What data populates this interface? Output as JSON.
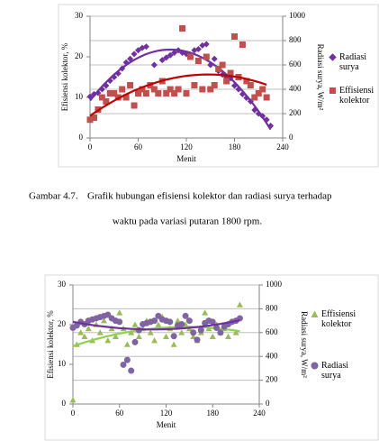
{
  "chart_data": [
    {
      "type": "scatter",
      "xlabel": "Menit",
      "ylabel": "Efisiensi kolektor, %",
      "y2label": "Radiasi surya, W/m²",
      "xlim": [
        0,
        240
      ],
      "xticks": [
        0,
        60,
        120,
        180,
        240
      ],
      "ylim": [
        0,
        30
      ],
      "yticks": [
        0,
        10,
        20,
        30
      ],
      "y2lim": [
        0,
        1000
      ],
      "y2ticks": [
        0,
        200,
        400,
        600,
        800,
        1000
      ],
      "grid": "y2",
      "trendline": "polynomial",
      "series": [
        {
          "name": "Radiasi surya",
          "color": "#7030a0",
          "marker": "diamond",
          "axis": "y2",
          "x": [
            0,
            5,
            10,
            15,
            20,
            25,
            30,
            35,
            40,
            45,
            50,
            55,
            60,
            65,
            70,
            80,
            90,
            95,
            100,
            105,
            110,
            115,
            120,
            125,
            130,
            135,
            140,
            145,
            150,
            155,
            160,
            165,
            170,
            175,
            180,
            185,
            190,
            195,
            200,
            205,
            210,
            215,
            220,
            225
          ],
          "values": [
            340,
            360,
            370,
            400,
            430,
            470,
            500,
            530,
            570,
            620,
            650,
            690,
            720,
            740,
            750,
            600,
            640,
            660,
            680,
            700,
            720,
            700,
            690,
            680,
            720,
            730,
            760,
            770,
            600,
            650,
            550,
            520,
            500,
            490,
            430,
            400,
            360,
            330,
            300,
            230,
            200,
            180,
            150,
            100
          ]
        },
        {
          "name": "Effisiensi kolektor",
          "color": "#c0504d",
          "marker": "square",
          "axis": "y",
          "x": [
            0,
            5,
            10,
            15,
            20,
            25,
            30,
            35,
            40,
            45,
            50,
            55,
            60,
            65,
            70,
            75,
            80,
            85,
            90,
            95,
            100,
            105,
            110,
            115,
            120,
            125,
            130,
            135,
            140,
            145,
            150,
            155,
            160,
            165,
            170,
            175,
            180,
            185,
            190,
            195,
            200,
            205,
            210,
            215,
            220
          ],
          "values": [
            4.5,
            5,
            7,
            10,
            9,
            11,
            11,
            10,
            12,
            10,
            13,
            8,
            11,
            12,
            11,
            13,
            12,
            11,
            14,
            11,
            12,
            11,
            12,
            27,
            11,
            20,
            13,
            19,
            12,
            20,
            12,
            13,
            17,
            18,
            14,
            16,
            25,
            15,
            23,
            14,
            13,
            10,
            11,
            12,
            10
          ]
        }
      ],
      "trend_colors": [
        "#7030a0",
        "#c00000"
      ]
    },
    {
      "type": "scatter",
      "xlabel": "Menit",
      "ylabel": "Efisiensi kolektor, %",
      "y2label": "Radiasi surya, W/m²",
      "xlim": [
        0,
        240
      ],
      "xticks": [
        0,
        60,
        120,
        180,
        240
      ],
      "ylim": [
        0,
        30
      ],
      "yticks": [
        0,
        10,
        20,
        30
      ],
      "y2lim": [
        0,
        1000
      ],
      "y2ticks": [
        0,
        200,
        400,
        600,
        800,
        1000
      ],
      "grid": "y2",
      "trendline": "polynomial",
      "series": [
        {
          "name": "Effisiensi kolektor",
          "color": "#9bbb59",
          "marker": "triangle",
          "axis": "y",
          "x": [
            0,
            5,
            10,
            15,
            20,
            25,
            30,
            35,
            40,
            45,
            50,
            55,
            60,
            65,
            70,
            75,
            80,
            85,
            90,
            95,
            100,
            105,
            110,
            115,
            120,
            125,
            130,
            135,
            140,
            145,
            150,
            155,
            160,
            165,
            170,
            175,
            180,
            185,
            190,
            195,
            200,
            210,
            215
          ],
          "values": [
            1,
            15,
            18,
            17,
            19,
            16,
            20,
            18,
            21,
            16,
            19,
            17,
            23,
            19,
            15,
            18,
            20,
            17,
            19,
            21,
            18,
            16,
            20,
            22,
            17,
            19,
            15,
            21,
            18,
            20,
            19,
            17,
            16,
            18,
            23,
            19,
            17,
            20,
            18,
            19,
            17,
            18,
            25
          ]
        },
        {
          "name": "Radiasi surya",
          "color": "#8064a2",
          "marker": "circle",
          "axis": "y2",
          "x": [
            0,
            5,
            10,
            15,
            20,
            25,
            30,
            35,
            40,
            45,
            50,
            55,
            60,
            65,
            70,
            75,
            80,
            85,
            90,
            95,
            100,
            105,
            110,
            115,
            120,
            125,
            130,
            135,
            140,
            145,
            150,
            155,
            160,
            165,
            170,
            175,
            180,
            185,
            190,
            195,
            200,
            205,
            210,
            215
          ],
          "values": [
            640,
            660,
            690,
            670,
            700,
            710,
            720,
            730,
            740,
            750,
            720,
            700,
            690,
            330,
            370,
            280,
            520,
            620,
            670,
            680,
            690,
            700,
            740,
            710,
            700,
            690,
            570,
            660,
            670,
            740,
            700,
            600,
            540,
            620,
            680,
            700,
            690,
            640,
            600,
            650,
            670,
            690,
            700,
            720
          ]
        }
      ],
      "trend_colors": [
        "#92d050",
        "#7030a0"
      ]
    }
  ],
  "caption": {
    "label": "Gambar 4.7.",
    "lines": [
      "Grafik hubungan efisiensi kolektor dan radiasi surya terhadap",
      "waktu pada variasi putaran 1800 rpm."
    ]
  }
}
